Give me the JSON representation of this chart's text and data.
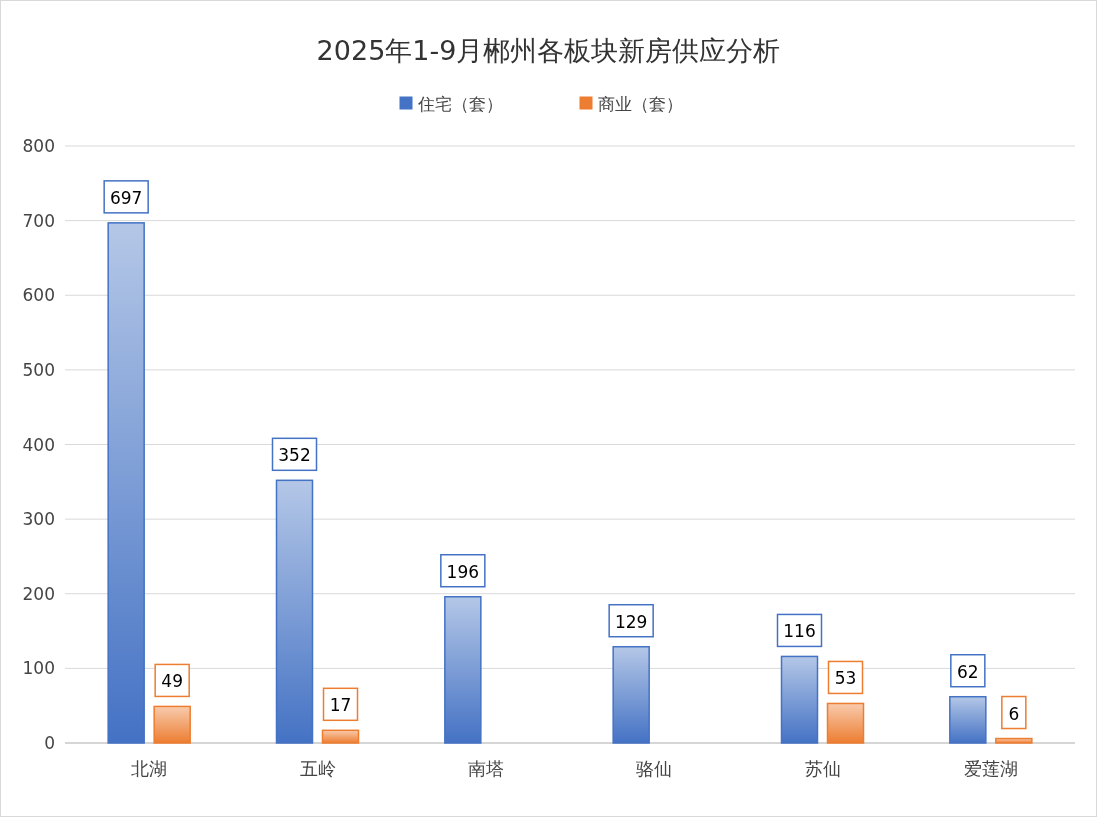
{
  "chart_data": {
    "type": "bar",
    "title": "2025年1-9月郴州各板块新房供应分析",
    "categories": [
      "北湖",
      "五岭",
      "南塔",
      "骆仙",
      "苏仙",
      "爱莲湖"
    ],
    "series": [
      {
        "name": "住宅（套）",
        "color": "#4472c4",
        "values": [
          697,
          352,
          196,
          129,
          116,
          62
        ]
      },
      {
        "name": "商业（套）",
        "color": "#ed7d31",
        "values": [
          49,
          17,
          null,
          null,
          53,
          6
        ]
      }
    ],
    "ylim": [
      0,
      800
    ],
    "yticks": [
      0,
      100,
      200,
      300,
      400,
      500,
      600,
      700,
      800
    ],
    "grid": "y",
    "legend": "top",
    "data_labels": true
  }
}
